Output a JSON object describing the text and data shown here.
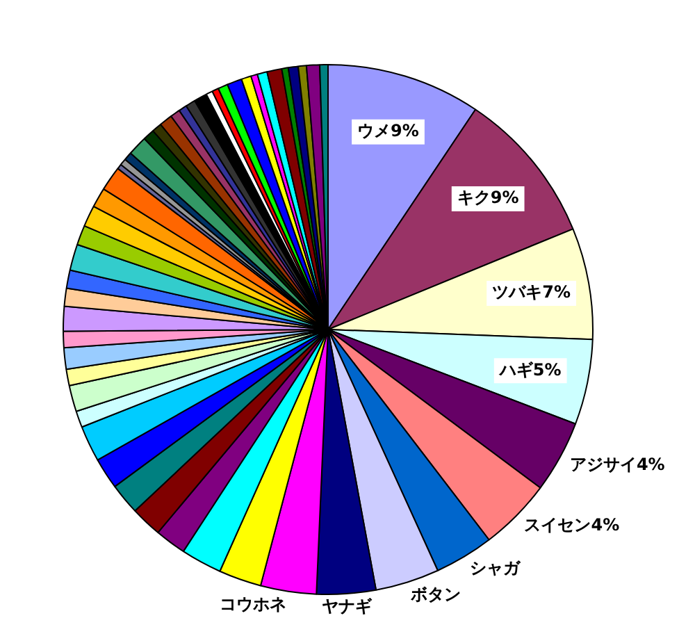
{
  "chart_data": {
    "type": "pie",
    "categories": [
      "ウメ",
      "キク",
      "ツバキ",
      "ハギ",
      "アジサイ",
      "スイセン",
      "シャガ",
      "ボタン",
      "ヤナギ",
      "コウホネ",
      null,
      null,
      null,
      null,
      null,
      null,
      null,
      null,
      null,
      null,
      null,
      null,
      null,
      null,
      null,
      null,
      null,
      null,
      null,
      null,
      null,
      null,
      null,
      null,
      null,
      null,
      null,
      null,
      null,
      null,
      null,
      null,
      null,
      null,
      null,
      null,
      null,
      null,
      null,
      null,
      null,
      null,
      null,
      null
    ],
    "values": [
      9.4,
      9.4,
      6.8,
      5.2,
      4.4,
      4.4,
      3.6,
      3.9,
      3.6,
      3.4,
      2.6,
      2.5,
      1.9,
      1.9,
      1.9,
      1.9,
      2.2,
      1.0,
      1.6,
      1.0,
      1.3,
      1.0,
      1.5,
      1.1,
      1.1,
      1.6,
      1.2,
      1.3,
      1.2,
      1.5,
      0.3,
      0.4,
      0.5,
      1.2,
      0.7,
      0.6,
      0.8,
      0.6,
      0.5,
      0.6,
      0.8,
      0.4,
      0.4,
      0.6,
      0.9,
      0.6,
      0.4,
      0.6,
      0.9,
      0.4,
      0.6,
      0.5,
      0.8,
      0.5
    ],
    "value_labels": [
      "9%",
      "9%",
      "7%",
      "5%",
      "4%",
      "4%",
      null,
      null,
      null,
      null,
      null,
      null,
      null,
      null,
      null,
      null,
      null,
      null,
      null,
      null,
      null,
      null,
      null,
      null,
      null,
      null,
      null,
      null,
      null,
      null,
      null,
      null,
      null,
      null,
      null,
      null,
      null,
      null,
      null,
      null,
      null,
      null,
      null,
      null,
      null,
      null,
      null,
      null,
      null,
      null,
      null,
      null,
      null,
      null
    ],
    "colors": [
      "#9999ff",
      "#993366",
      "#ffffcc",
      "#ccffff",
      "#660066",
      "#ff8080",
      "#0066cc",
      "#ccccff",
      "#000080",
      "#ff00ff",
      "#ffff00",
      "#00ffff",
      "#800080",
      "#800000",
      "#008080",
      "#0000ff",
      "#00ccff",
      "#ccffff",
      "#ccffcc",
      "#ffff99",
      "#99ccff",
      "#ff99cc",
      "#cc99ff",
      "#ffcc99",
      "#3366ff",
      "#33cccc",
      "#99cc00",
      "#ffcc00",
      "#ff9900",
      "#ff6600",
      "#666699",
      "#969696",
      "#003366",
      "#339966",
      "#003300",
      "#333300",
      "#993300",
      "#993366",
      "#333399",
      "#333333",
      "#000000",
      "#ffffff",
      "#ff0000",
      "#00ff00",
      "#0000ff",
      "#ffff00",
      "#ff00ff",
      "#00ffff",
      "#800000",
      "#008000",
      "#000080",
      "#808000",
      "#800080",
      "#008080"
    ]
  }
}
